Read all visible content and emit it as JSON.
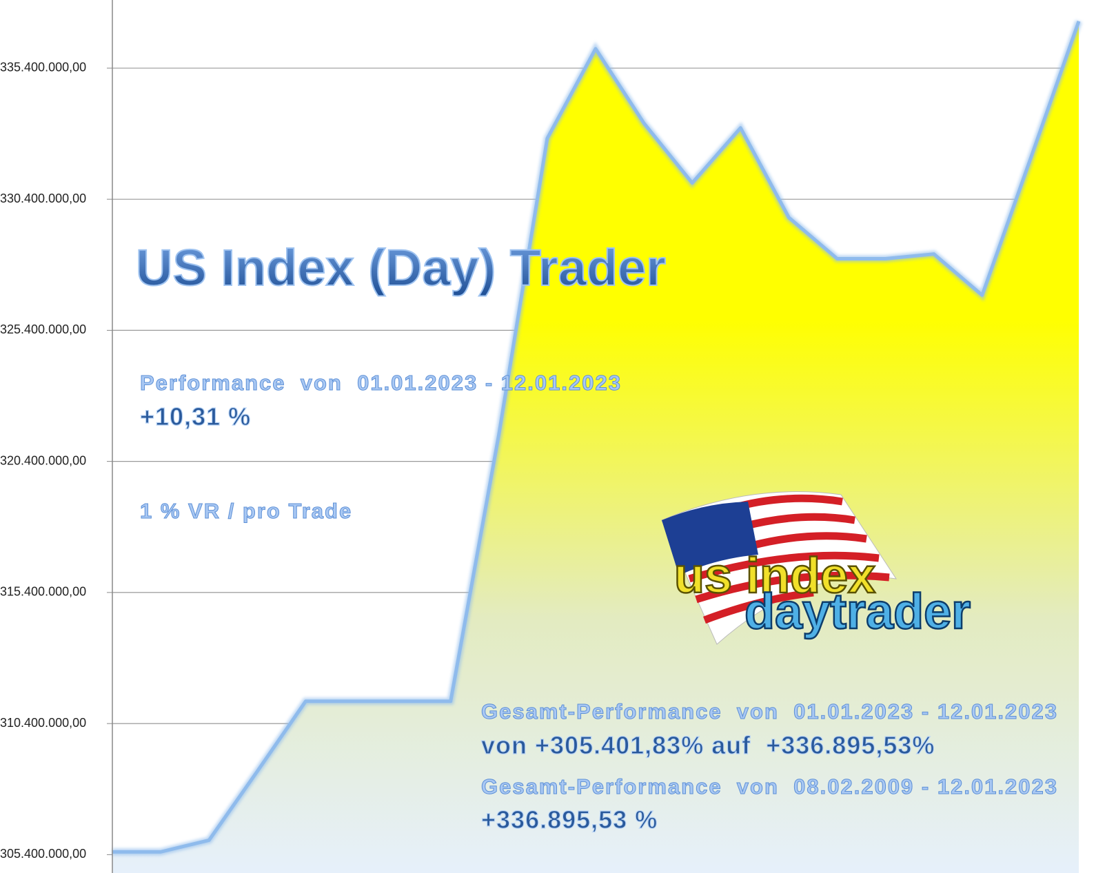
{
  "chart_data": {
    "type": "area",
    "title": "US Index (Day) Trader",
    "categories": [
      null,
      null,
      null,
      null,
      null,
      null,
      null,
      null,
      null,
      null,
      null,
      null,
      null,
      null,
      null,
      null,
      null,
      null,
      null,
      null,
      null
    ],
    "values": [
      305505000,
      305505000,
      305950000,
      308580000,
      311250000,
      311250000,
      311250000,
      311250000,
      321440000,
      332720000,
      336140000,
      333300000,
      331020000,
      333120000,
      329700000,
      328130000,
      328130000,
      328310000,
      326740000,
      331940000,
      337190000
    ],
    "color": "#8fbbec",
    "ylim": [
      304700000,
      338000000
    ],
    "yticks": [
      {
        "value": 305400000,
        "label": "305.400.000,00"
      },
      {
        "value": 310400000,
        "label": "310.400.000,00"
      },
      {
        "value": 315400000,
        "label": "315.400.000,00"
      },
      {
        "value": 320400000,
        "label": "320.400.000,00"
      },
      {
        "value": 325400000,
        "label": "325.400.000,00"
      },
      {
        "value": 330400000,
        "label": "330.400.000,00"
      },
      {
        "value": 335400000,
        "label": "335.400.000,00"
      }
    ],
    "grid": true,
    "annotations": [
      "Performance  von  01.01.2023 - 12.01.2023",
      "+10,31 %",
      "1 % VR / pro Trade",
      "Gesamt-Performance  von  01.01.2023 - 12.01.2023",
      "von +305.401,83% auf  +336.895,53%",
      "Gesamt-Performance  von  08.02.2009 - 12.01.2023",
      "+336.895,53 %"
    ],
    "logo": {
      "line1": "us index",
      "line2": "daytrader"
    }
  }
}
